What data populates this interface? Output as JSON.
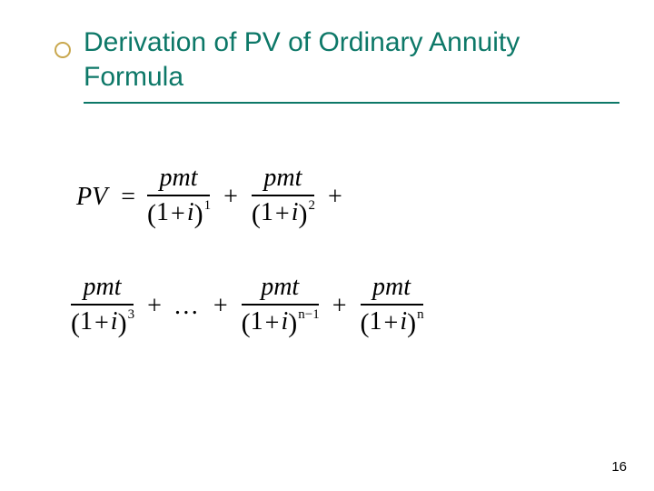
{
  "title": "Derivation of PV of Ordinary Annuity Formula",
  "page_number": "16",
  "colors": {
    "title": "#0d7868",
    "bullet_border": "#c9a84f",
    "rule": "#0d7868",
    "background": "#ffffff",
    "text": "#000000"
  },
  "formula": {
    "lhs": "PV",
    "numerator": "pmt",
    "base": "(1+i)",
    "exponents": [
      "1",
      "2",
      "3",
      "n−1",
      "n"
    ],
    "ellipsis": "…",
    "plus": "+",
    "equals": "="
  }
}
